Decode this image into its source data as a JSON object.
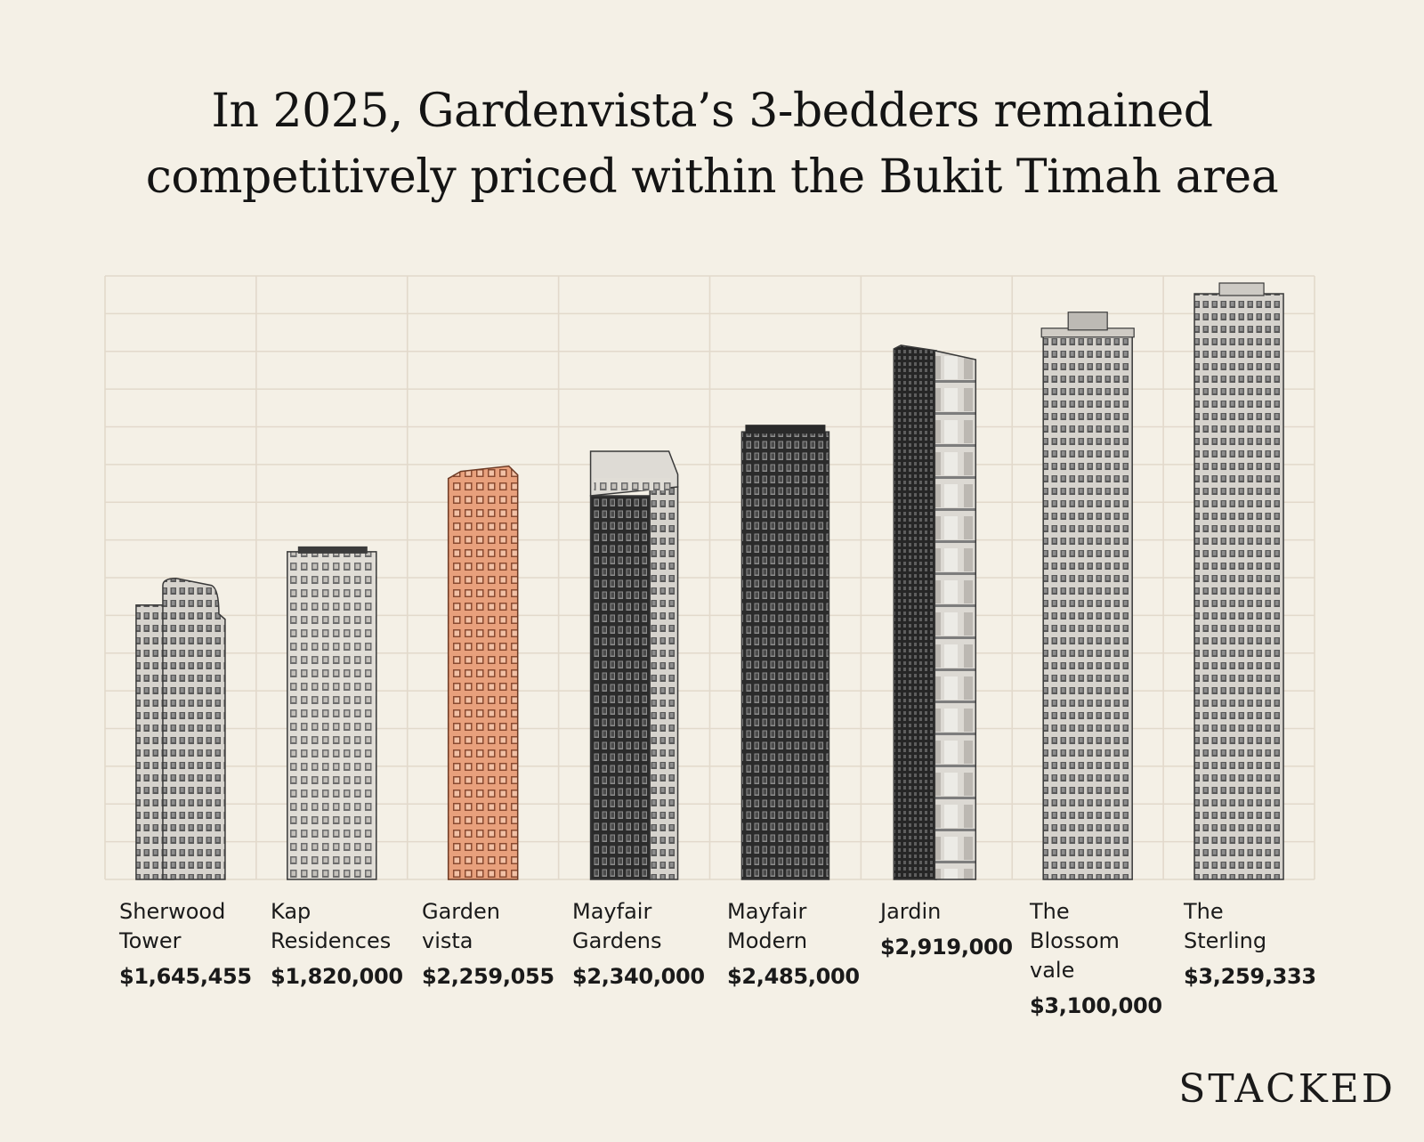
{
  "title_line1": "In 2025, Gardenvista’s 3-bedders remained",
  "title_line2": "competitively priced within the Bukit Timah area",
  "brand": "STACKED",
  "colors": {
    "background": "#f4f0e6",
    "grid": "#e2d9cb",
    "building_light": "#d5d2cc",
    "building_dark": "#2c2c2c",
    "highlight": "#e8a07c"
  },
  "chart_data": {
    "type": "bar",
    "grid": true,
    "categories": [
      "Sherwood Tower",
      "Kap Residences",
      "Garden vista",
      "Mayfair Gardens",
      "Mayfair Modern",
      "Jardin",
      "The Blossom vale",
      "The Sterling"
    ],
    "name_lines": [
      [
        "Sherwood",
        "Tower"
      ],
      [
        "Kap",
        "Residences"
      ],
      [
        "Garden",
        "vista"
      ],
      [
        "Mayfair",
        "Gardens"
      ],
      [
        "Mayfair",
        "Modern"
      ],
      [
        "Jardin"
      ],
      [
        "The",
        "Blossom",
        "vale"
      ],
      [
        "The",
        "Sterling"
      ]
    ],
    "value_labels": [
      "$1,645,455",
      "$1,820,000",
      "$2,259,055",
      "$2,340,000",
      "$2,485,000",
      "$2,919,000",
      "$3,100,000",
      "$3,259,333"
    ],
    "values": [
      1645455,
      1820000,
      2259055,
      2340000,
      2485000,
      2919000,
      3100000,
      3259333
    ],
    "highlight": "Garden vista",
    "buildings": [
      {
        "style": "light-twin",
        "highlight": false
      },
      {
        "style": "light",
        "highlight": false
      },
      {
        "style": "copper",
        "highlight": true
      },
      {
        "style": "dark-light",
        "highlight": false
      },
      {
        "style": "dark",
        "highlight": false
      },
      {
        "style": "dark-balcony",
        "highlight": false
      },
      {
        "style": "light-crown",
        "highlight": false
      },
      {
        "style": "light-tall",
        "highlight": false
      }
    ]
  }
}
